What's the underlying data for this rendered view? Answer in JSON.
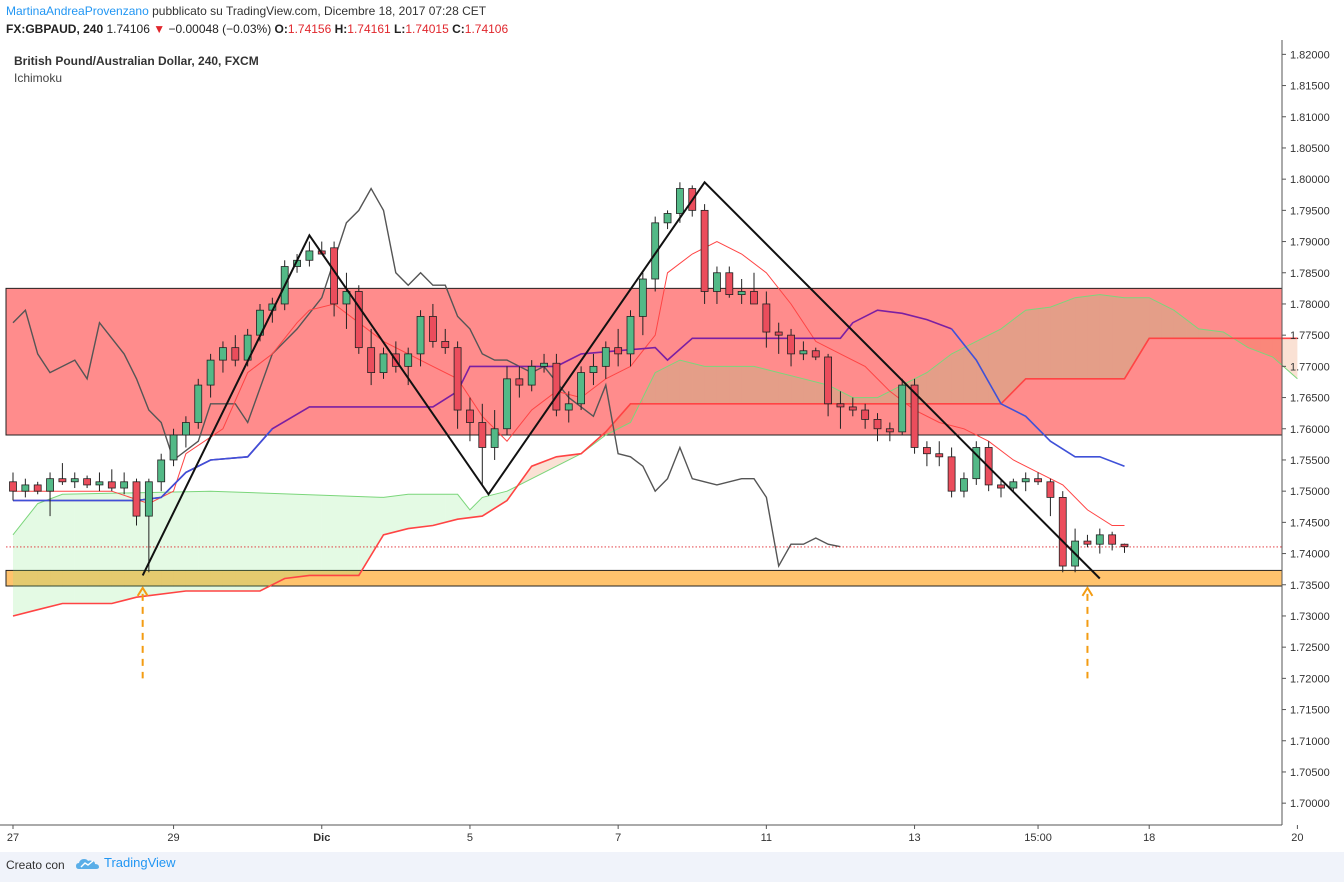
{
  "header": {
    "author": "MartinaAndreaProvenzano",
    "published": "pubblicato su TradingView.com, Dicembre 18, 2017 07:28 CET",
    "symbol": "FX:GBPAUD, 240",
    "last": "1.74106",
    "change": "−0.00048 (−0.03%)",
    "o_label": "O:",
    "o": "1.74156",
    "h_label": "H:",
    "h": "1.74161",
    "l_label": "L:",
    "l": "1.74015",
    "c_label": "C:",
    "c": "1.74106"
  },
  "footer": {
    "created": "Creato con",
    "brand": "TradingView"
  },
  "colors": {
    "bull": "#53b987",
    "bear": "#eb4d5c",
    "resistance": "#ff5a5a",
    "support": "#ffb74d",
    "tenkan": "#ff4444",
    "kijun": "#6a1b9a",
    "chikou": "#555555"
  },
  "chart_data": {
    "type": "candlestick",
    "title": "British Pound/Australian Dollar, 240, FXCM",
    "indicator": "Ichimoku",
    "ylim": [
      1.6965,
      1.8215
    ],
    "y_ticks": [
      "1.82000",
      "1.81500",
      "1.81000",
      "1.80500",
      "1.80000",
      "1.79500",
      "1.79000",
      "1.78500",
      "1.78000",
      "1.77500",
      "1.77000",
      "1.76500",
      "1.76000",
      "1.75500",
      "1.75000",
      "1.74500",
      "1.74000",
      "1.73500",
      "1.73000",
      "1.72500",
      "1.72000",
      "1.71500",
      "1.71000",
      "1.70500",
      "1.70000"
    ],
    "x_labels": [
      "27",
      "29",
      "Dic",
      "5",
      "7",
      "11",
      "13",
      "15:00",
      "18",
      "20"
    ],
    "x_label_idx": [
      0,
      13,
      25,
      37,
      49,
      61,
      73,
      83,
      92,
      104
    ],
    "bars": 105,
    "resistance_zone": [
      1.759,
      1.7825
    ],
    "support_zone": [
      1.7348,
      1.7373
    ],
    "current_price": 1.74106,
    "candles": [
      [
        1.7515,
        1.753,
        1.7485,
        1.75
      ],
      [
        1.75,
        1.752,
        1.749,
        1.751
      ],
      [
        1.751,
        1.7515,
        1.7495,
        1.75
      ],
      [
        1.75,
        1.753,
        1.746,
        1.752
      ],
      [
        1.752,
        1.7545,
        1.751,
        1.7515
      ],
      [
        1.7515,
        1.753,
        1.7505,
        1.752
      ],
      [
        1.752,
        1.7525,
        1.7505,
        1.751
      ],
      [
        1.751,
        1.753,
        1.75,
        1.7515
      ],
      [
        1.7515,
        1.7535,
        1.75,
        1.7505
      ],
      [
        1.7505,
        1.753,
        1.7495,
        1.7515
      ],
      [
        1.7515,
        1.752,
        1.7445,
        1.746
      ],
      [
        1.746,
        1.752,
        1.737,
        1.7515
      ],
      [
        1.7515,
        1.756,
        1.75,
        1.755
      ],
      [
        1.755,
        1.76,
        1.754,
        1.759
      ],
      [
        1.759,
        1.762,
        1.757,
        1.761
      ],
      [
        1.761,
        1.768,
        1.76,
        1.767
      ],
      [
        1.767,
        1.772,
        1.765,
        1.771
      ],
      [
        1.771,
        1.774,
        1.769,
        1.773
      ],
      [
        1.773,
        1.775,
        1.77,
        1.771
      ],
      [
        1.771,
        1.776,
        1.77,
        1.775
      ],
      [
        1.775,
        1.78,
        1.774,
        1.779
      ],
      [
        1.779,
        1.781,
        1.777,
        1.78
      ],
      [
        1.78,
        1.787,
        1.779,
        1.786
      ],
      [
        1.786,
        1.788,
        1.785,
        1.787
      ],
      [
        1.787,
        1.79,
        1.786,
        1.7885
      ],
      [
        1.7885,
        1.79,
        1.788,
        1.788
      ],
      [
        1.789,
        1.79,
        1.778,
        1.78
      ],
      [
        1.78,
        1.785,
        1.776,
        1.782
      ],
      [
        1.782,
        1.783,
        1.772,
        1.773
      ],
      [
        1.773,
        1.776,
        1.767,
        1.769
      ],
      [
        1.769,
        1.773,
        1.768,
        1.772
      ],
      [
        1.772,
        1.774,
        1.769,
        1.77
      ],
      [
        1.77,
        1.773,
        1.767,
        1.772
      ],
      [
        1.772,
        1.779,
        1.77,
        1.778
      ],
      [
        1.778,
        1.78,
        1.773,
        1.774
      ],
      [
        1.774,
        1.776,
        1.772,
        1.773
      ],
      [
        1.773,
        1.774,
        1.76,
        1.763
      ],
      [
        1.763,
        1.765,
        1.758,
        1.761
      ],
      [
        1.761,
        1.764,
        1.751,
        1.757
      ],
      [
        1.757,
        1.763,
        1.755,
        1.76
      ],
      [
        1.76,
        1.77,
        1.759,
        1.768
      ],
      [
        1.768,
        1.77,
        1.765,
        1.767
      ],
      [
        1.767,
        1.771,
        1.766,
        1.77
      ],
      [
        1.77,
        1.772,
        1.769,
        1.7705
      ],
      [
        1.7705,
        1.772,
        1.762,
        1.763
      ],
      [
        1.763,
        1.766,
        1.761,
        1.764
      ],
      [
        1.764,
        1.77,
        1.763,
        1.769
      ],
      [
        1.769,
        1.772,
        1.767,
        1.77
      ],
      [
        1.77,
        1.774,
        1.768,
        1.773
      ],
      [
        1.773,
        1.776,
        1.77,
        1.772
      ],
      [
        1.772,
        1.779,
        1.77,
        1.778
      ],
      [
        1.778,
        1.785,
        1.775,
        1.784
      ],
      [
        1.784,
        1.794,
        1.782,
        1.793
      ],
      [
        1.793,
        1.795,
        1.792,
        1.7945
      ],
      [
        1.7945,
        1.7995,
        1.793,
        1.7985
      ],
      [
        1.7985,
        1.799,
        1.794,
        1.795
      ],
      [
        1.795,
        1.796,
        1.78,
        1.782
      ],
      [
        1.782,
        1.786,
        1.78,
        1.785
      ],
      [
        1.785,
        1.786,
        1.781,
        1.7815
      ],
      [
        1.7815,
        1.784,
        1.78,
        1.782
      ],
      [
        1.782,
        1.785,
        1.78,
        1.78
      ],
      [
        1.78,
        1.782,
        1.773,
        1.7755
      ],
      [
        1.7755,
        1.777,
        1.772,
        1.775
      ],
      [
        1.775,
        1.776,
        1.77,
        1.772
      ],
      [
        1.772,
        1.774,
        1.771,
        1.7725
      ],
      [
        1.7725,
        1.773,
        1.771,
        1.7715
      ],
      [
        1.7715,
        1.772,
        1.762,
        1.764
      ],
      [
        1.764,
        1.766,
        1.76,
        1.7635
      ],
      [
        1.7635,
        1.765,
        1.762,
        1.763
      ],
      [
        1.763,
        1.764,
        1.76,
        1.7615
      ],
      [
        1.7615,
        1.7625,
        1.758,
        1.76
      ],
      [
        1.76,
        1.761,
        1.758,
        1.7595
      ],
      [
        1.7595,
        1.768,
        1.759,
        1.767
      ],
      [
        1.767,
        1.768,
        1.756,
        1.757
      ],
      [
        1.757,
        1.758,
        1.754,
        1.756
      ],
      [
        1.756,
        1.758,
        1.754,
        1.7555
      ],
      [
        1.7555,
        1.757,
        1.749,
        1.75
      ],
      [
        1.75,
        1.753,
        1.749,
        1.752
      ],
      [
        1.752,
        1.758,
        1.751,
        1.757
      ],
      [
        1.757,
        1.758,
        1.75,
        1.751
      ],
      [
        1.751,
        1.752,
        1.749,
        1.7505
      ],
      [
        1.7505,
        1.752,
        1.75,
        1.7515
      ],
      [
        1.7515,
        1.753,
        1.75,
        1.752
      ],
      [
        1.752,
        1.753,
        1.751,
        1.7515
      ],
      [
        1.7515,
        1.752,
        1.746,
        1.749
      ],
      [
        1.749,
        1.75,
        1.737,
        1.738
      ],
      [
        1.738,
        1.744,
        1.737,
        1.742
      ],
      [
        1.742,
        1.743,
        1.741,
        1.7415
      ],
      [
        1.7415,
        1.744,
        1.74,
        1.743
      ],
      [
        1.743,
        1.7435,
        1.7405,
        1.7415
      ],
      [
        1.7415,
        1.7416,
        1.7401,
        1.7411
      ]
    ],
    "tenkan": [
      [
        0,
        1.75
      ],
      [
        8,
        1.75
      ],
      [
        11,
        1.748
      ],
      [
        13,
        1.75
      ],
      [
        14,
        1.756
      ],
      [
        17,
        1.76
      ],
      [
        19,
        1.769
      ],
      [
        21,
        1.772
      ],
      [
        23,
        1.777
      ],
      [
        24,
        1.779
      ],
      [
        26,
        1.78
      ],
      [
        28,
        1.777
      ],
      [
        30,
        1.774
      ],
      [
        32,
        1.772
      ],
      [
        34,
        1.77
      ],
      [
        36,
        1.768
      ],
      [
        38,
        1.762
      ],
      [
        40,
        1.758
      ],
      [
        42,
        1.763
      ],
      [
        44,
        1.766
      ],
      [
        46,
        1.765
      ],
      [
        48,
        1.768
      ],
      [
        50,
        1.77
      ],
      [
        52,
        1.775
      ],
      [
        53,
        1.785
      ],
      [
        55,
        1.788
      ],
      [
        57,
        1.79
      ],
      [
        59,
        1.788
      ],
      [
        61,
        1.785
      ],
      [
        63,
        1.78
      ],
      [
        65,
        1.774
      ],
      [
        67,
        1.772
      ],
      [
        69,
        1.77
      ],
      [
        71,
        1.766
      ],
      [
        73,
        1.763
      ],
      [
        75,
        1.761
      ],
      [
        77,
        1.76
      ],
      [
        79,
        1.758
      ],
      [
        81,
        1.755
      ],
      [
        83,
        1.753
      ],
      [
        85,
        1.751
      ],
      [
        87,
        1.747
      ],
      [
        89,
        1.7445
      ],
      [
        90,
        1.7445
      ]
    ],
    "kijun": [
      [
        0,
        1.7485
      ],
      [
        10,
        1.7485
      ],
      [
        12,
        1.749
      ],
      [
        14,
        1.753
      ],
      [
        16,
        1.755
      ],
      [
        19,
        1.7555
      ],
      [
        21,
        1.76
      ],
      [
        24,
        1.7635
      ],
      [
        34,
        1.7635
      ],
      [
        36,
        1.766
      ],
      [
        37,
        1.77
      ],
      [
        44,
        1.77
      ],
      [
        46,
        1.772
      ],
      [
        52,
        1.773
      ],
      [
        53,
        1.771
      ],
      [
        55,
        1.7745
      ],
      [
        67,
        1.7745
      ],
      [
        68,
        1.777
      ],
      [
        70,
        1.779
      ],
      [
        72,
        1.7785
      ],
      [
        74,
        1.7775
      ],
      [
        76,
        1.776
      ],
      [
        78,
        1.771
      ],
      [
        80,
        1.764
      ],
      [
        82,
        1.762
      ],
      [
        84,
        1.758
      ],
      [
        86,
        1.7555
      ],
      [
        88,
        1.7555
      ],
      [
        90,
        1.754
      ]
    ],
    "chikou": [
      [
        0,
        1.777
      ],
      [
        1,
        1.779
      ],
      [
        2,
        1.772
      ],
      [
        3,
        1.769
      ],
      [
        5,
        1.771
      ],
      [
        6,
        1.768
      ],
      [
        7,
        1.777
      ],
      [
        9,
        1.772
      ],
      [
        10,
        1.768
      ],
      [
        11,
        1.763
      ],
      [
        12,
        1.761
      ],
      [
        13,
        1.755
      ],
      [
        15,
        1.758
      ],
      [
        16,
        1.764
      ],
      [
        18,
        1.764
      ],
      [
        19,
        1.761
      ],
      [
        21,
        1.772
      ],
      [
        23,
        1.776
      ],
      [
        25,
        1.781
      ],
      [
        27,
        1.793
      ],
      [
        28,
        1.795
      ],
      [
        29,
        1.7985
      ],
      [
        30,
        1.795
      ],
      [
        31,
        1.785
      ],
      [
        32,
        1.783
      ],
      [
        33,
        1.785
      ],
      [
        34,
        1.783
      ],
      [
        35,
        1.783
      ],
      [
        36,
        1.778
      ],
      [
        37,
        1.776
      ],
      [
        38,
        1.772
      ],
      [
        39,
        1.771
      ],
      [
        40,
        1.771
      ],
      [
        41,
        1.77
      ],
      [
        42,
        1.769
      ],
      [
        43,
        1.77
      ],
      [
        45,
        1.765
      ],
      [
        47,
        1.762
      ],
      [
        48,
        1.767
      ],
      [
        49,
        1.756
      ],
      [
        50,
        1.7555
      ],
      [
        51,
        1.754
      ],
      [
        52,
        1.75
      ],
      [
        53,
        1.752
      ],
      [
        54,
        1.757
      ],
      [
        55,
        1.752
      ],
      [
        56,
        1.7515
      ],
      [
        57,
        1.751
      ],
      [
        59,
        1.752
      ],
      [
        60,
        1.752
      ],
      [
        61,
        1.749
      ],
      [
        62,
        1.738
      ],
      [
        63,
        1.7415
      ],
      [
        64,
        1.7415
      ],
      [
        65,
        1.7425
      ],
      [
        66,
        1.7415
      ],
      [
        67,
        1.7411
      ]
    ],
    "span_a": [
      [
        0,
        1.743
      ],
      [
        2,
        1.748
      ],
      [
        4,
        1.7495
      ],
      [
        16,
        1.75
      ],
      [
        30,
        1.749
      ],
      [
        32,
        1.7495
      ],
      [
        36,
        1.7495
      ],
      [
        37,
        1.747
      ],
      [
        38,
        1.749
      ],
      [
        40,
        1.75
      ],
      [
        46,
        1.756
      ],
      [
        48,
        1.759
      ],
      [
        50,
        1.761
      ],
      [
        52,
        1.769
      ],
      [
        54,
        1.771
      ],
      [
        56,
        1.77
      ],
      [
        60,
        1.77
      ],
      [
        62,
        1.769
      ],
      [
        64,
        1.768
      ],
      [
        66,
        1.767
      ],
      [
        68,
        1.765
      ],
      [
        70,
        1.765
      ],
      [
        72,
        1.767
      ],
      [
        74,
        1.769
      ],
      [
        76,
        1.772
      ],
      [
        78,
        1.774
      ],
      [
        80,
        1.776
      ],
      [
        82,
        1.779
      ],
      [
        84,
        1.7795
      ],
      [
        86,
        1.781
      ],
      [
        88,
        1.7815
      ],
      [
        90,
        1.781
      ],
      [
        92,
        1.781
      ],
      [
        94,
        1.779
      ],
      [
        96,
        1.776
      ],
      [
        98,
        1.7755
      ],
      [
        100,
        1.773
      ],
      [
        102,
        1.7715
      ],
      [
        104,
        1.768
      ]
    ],
    "span_b": [
      [
        0,
        1.73
      ],
      [
        2,
        1.731
      ],
      [
        4,
        1.732
      ],
      [
        8,
        1.732
      ],
      [
        10,
        1.733
      ],
      [
        14,
        1.734
      ],
      [
        20,
        1.734
      ],
      [
        22,
        1.736
      ],
      [
        24,
        1.7365
      ],
      [
        28,
        1.7365
      ],
      [
        30,
        1.743
      ],
      [
        32,
        1.744
      ],
      [
        34,
        1.7445
      ],
      [
        36,
        1.7455
      ],
      [
        38,
        1.746
      ],
      [
        40,
        1.7485
      ],
      [
        42,
        1.754
      ],
      [
        44,
        1.7555
      ],
      [
        46,
        1.756
      ],
      [
        48,
        1.7595
      ],
      [
        50,
        1.764
      ],
      [
        62,
        1.764
      ],
      [
        80,
        1.764
      ],
      [
        82,
        1.768
      ],
      [
        90,
        1.768
      ],
      [
        92,
        1.7745
      ],
      [
        104,
        1.7745
      ]
    ],
    "zigzag": [
      [
        10.5,
        1.7365
      ],
      [
        24,
        1.791
      ],
      [
        38.5,
        1.7495
      ],
      [
        56,
        1.7995
      ],
      [
        88,
        1.736
      ]
    ],
    "arrows": [
      [
        10.5,
        1.7345,
        1.72
      ],
      [
        87,
        1.7345,
        1.72
      ]
    ]
  }
}
